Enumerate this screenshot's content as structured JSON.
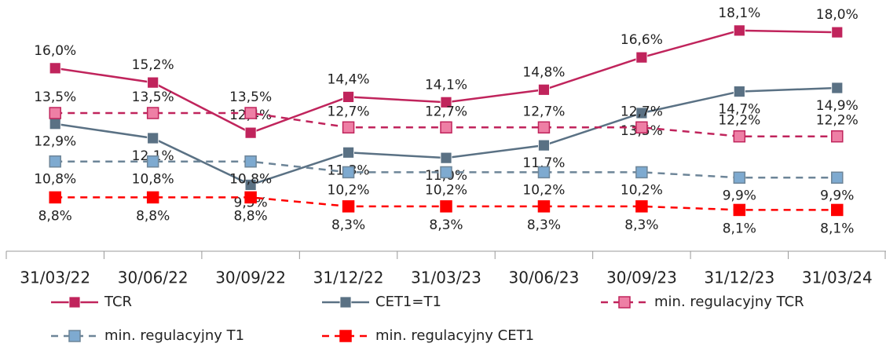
{
  "chart_data": {
    "type": "line",
    "categories": [
      "31/03/22",
      "30/06/22",
      "30/09/22",
      "31/12/22",
      "31/03/23",
      "30/06/23",
      "30/09/23",
      "31/12/23",
      "31/03/24"
    ],
    "ylim": [
      5.8,
      19.8
    ],
    "legend": "bottom",
    "series": [
      {
        "name": "TCR",
        "color": "#c0245c",
        "marker_color": "#c0245c",
        "dashed": false,
        "values": [
          16.0,
          15.2,
          12.4,
          14.4,
          14.1,
          14.8,
          16.6,
          18.1,
          18.0
        ],
        "value_labels": [
          "16,0%",
          "15,2%",
          "12,4%",
          "14,4%",
          "14,1%",
          "14,8%",
          "16,6%",
          "18,1%",
          "18,0%"
        ]
      },
      {
        "name": "CET1=T1",
        "color": "#5a7184",
        "marker_color": "#5a7184",
        "dashed": false,
        "values": [
          12.9,
          12.1,
          9.5,
          11.3,
          11.0,
          11.7,
          13.5,
          14.7,
          14.9
        ],
        "value_labels": [
          "12,9%",
          "12,1%",
          "9,5%",
          "11,3%",
          "11,0%",
          "11,7%",
          "13,5%",
          "14,7%",
          "14,9%"
        ]
      },
      {
        "name": "min. regulacyjny TCR",
        "color": "#c0245c",
        "marker_color": "#ee7fa5",
        "dashed": true,
        "values": [
          13.5,
          13.5,
          13.5,
          12.7,
          12.7,
          12.7,
          12.7,
          12.2,
          12.2
        ],
        "value_labels": [
          "13,5%",
          "13,5%",
          "13,5%",
          "12,7%",
          "12,7%",
          "12,7%",
          "12,7%",
          "12,2%",
          "12,2%"
        ]
      },
      {
        "name": "min. regulacyjny T1",
        "color": "#6d8598",
        "marker_color": "#7eaad0",
        "dashed": true,
        "values": [
          10.8,
          10.8,
          10.8,
          10.2,
          10.2,
          10.2,
          10.2,
          9.9,
          9.9
        ],
        "value_labels": [
          "10,8%",
          "10,8%",
          "10,8%",
          "10,2%",
          "10,2%",
          "10,2%",
          "10,2%",
          "9,9%",
          "9,9%"
        ]
      },
      {
        "name": "min. regulacyjny CET1",
        "color": "#ff0000",
        "marker_color": "#ff0000",
        "dashed": true,
        "values": [
          8.8,
          8.8,
          8.8,
          8.3,
          8.3,
          8.3,
          8.3,
          8.1,
          8.1
        ],
        "value_labels": [
          "8,8%",
          "8,8%",
          "8,8%",
          "8,3%",
          "8,3%",
          "8,3%",
          "8,3%",
          "8,1%",
          "8,1%"
        ]
      }
    ]
  }
}
